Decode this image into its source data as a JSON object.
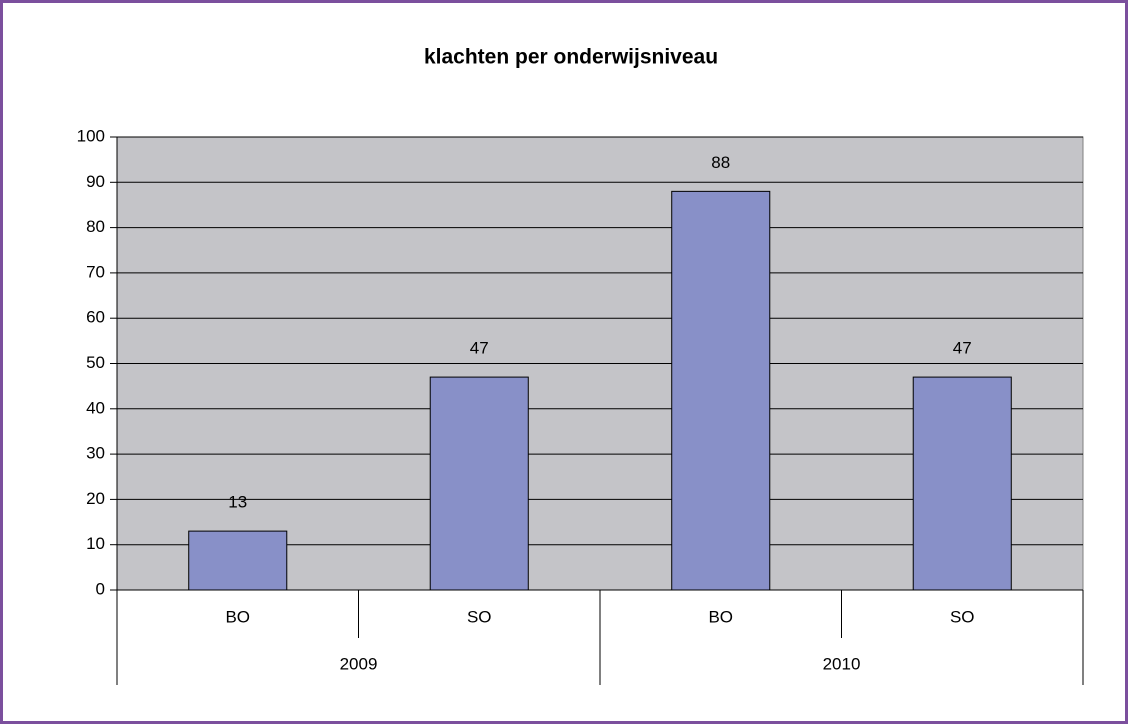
{
  "chart_data": {
    "type": "bar",
    "title": "klachten per onderwijsniveau",
    "categories": [
      "BO",
      "SO",
      "BO",
      "SO"
    ],
    "groups": [
      "2009",
      "2010"
    ],
    "values": [
      13,
      47,
      88,
      47
    ],
    "color": "#8890c8",
    "ylim": [
      0,
      100
    ],
    "yticks": [
      0,
      10,
      20,
      30,
      40,
      50,
      60,
      70,
      80,
      90,
      100
    ],
    "grid": true
  }
}
